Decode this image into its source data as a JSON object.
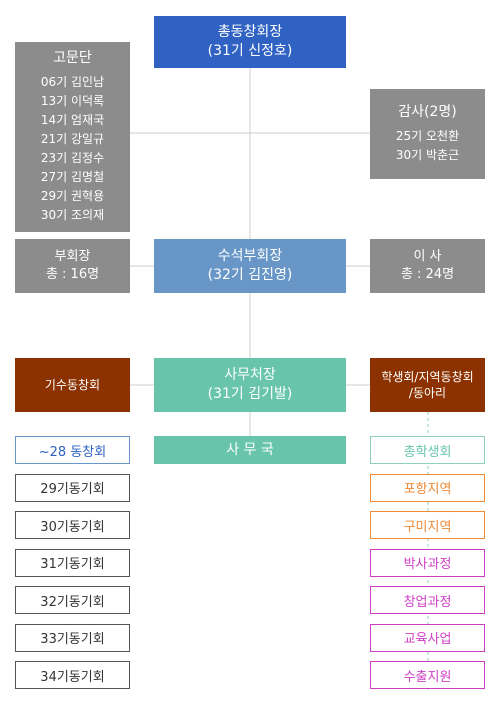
{
  "chairman": {
    "title": "총동창회장",
    "name": "(31기 신정호)"
  },
  "advisors": {
    "title": "고문단",
    "members": [
      "06기 김인남",
      "13기 이덕록",
      "14기 엄재국",
      "21기 강일규",
      "23기 김정수",
      "27기 김명철",
      "29기 권혁용",
      "30기 조의재"
    ]
  },
  "auditors": {
    "title": "감사(2명)",
    "members": [
      "25기 오천환",
      "30기 박춘근"
    ]
  },
  "vice_chairs": {
    "title": "부회장",
    "count": "총 : 16명"
  },
  "senior_vice": {
    "title": "수석부회장",
    "name": "(32기 김진영)"
  },
  "directors": {
    "title": "이 사",
    "count": "총 : 24명"
  },
  "secretary_general": {
    "title": "사무처장",
    "name": "(31기 김기발)"
  },
  "secretariat": {
    "title": "사 무 국"
  },
  "class_alumni": {
    "title": "기수동창회",
    "items": [
      "~28 동창회",
      "29기동기회",
      "30기동기회",
      "31기동기회",
      "32기동기회",
      "33기동기회",
      "34기동기회"
    ]
  },
  "student_regional": {
    "title_line1": "학생회/지역동창회",
    "title_line2": "/동아리",
    "items": [
      "총학생회",
      "포항지역",
      "구미지역",
      "박사과정",
      "창업과정",
      "교육사업",
      "수출지원"
    ]
  },
  "colors": {
    "line": "#cccccc",
    "dashed": "#8fd0bc",
    "left_first_border": "#6796c7",
    "left_first_text": "#2f62c2",
    "left_border": "#555555",
    "left_text": "#333333",
    "right_first_border": "#8fd0bc",
    "right_first_text": "#68c5ab",
    "orange": "#ee8a36",
    "magenta": "#cf3fc6"
  }
}
